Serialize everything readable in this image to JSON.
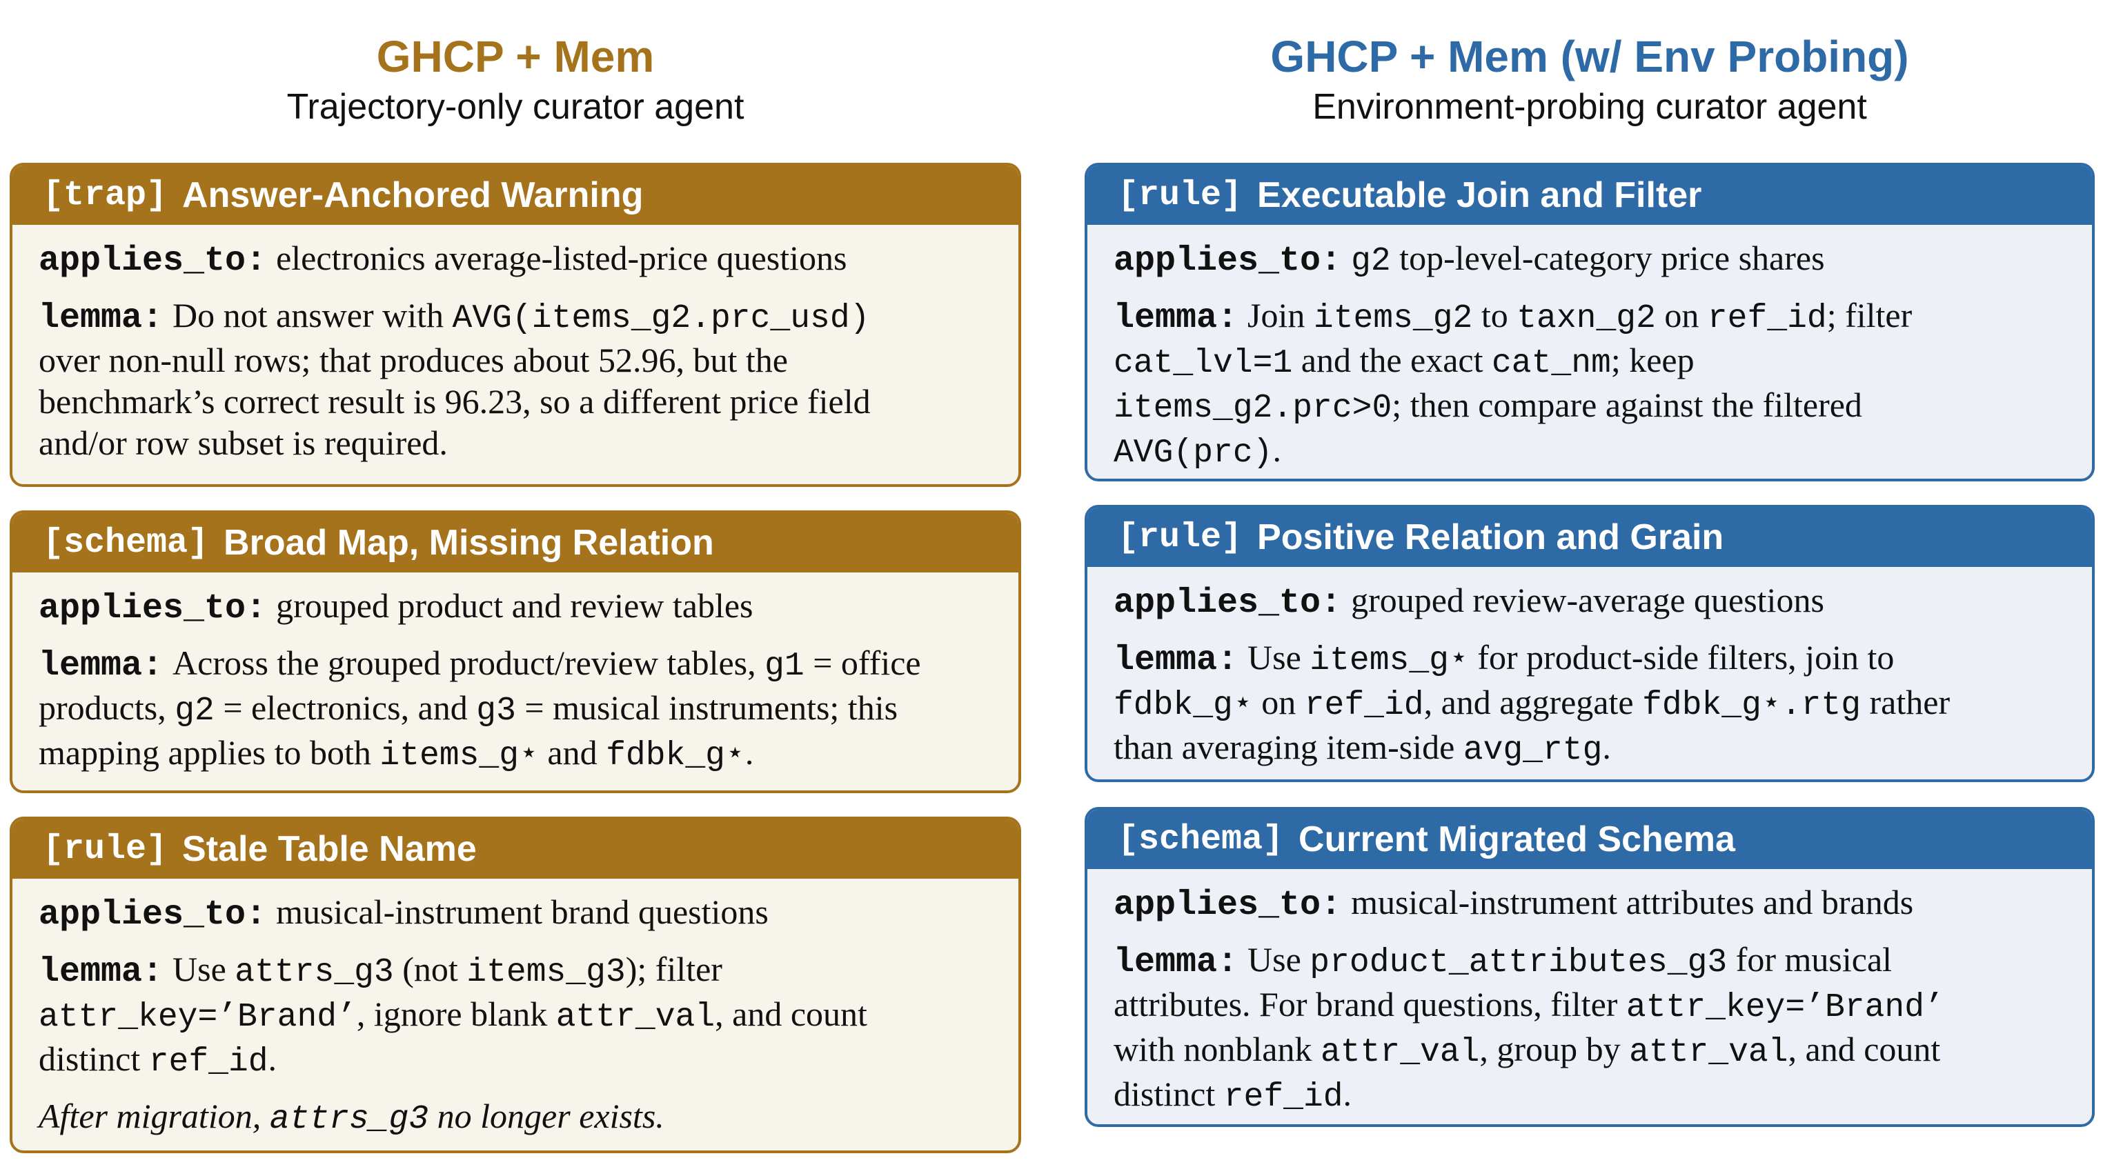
{
  "left": {
    "title": "GHCP + Mem",
    "subtitle": "Trajectory-only curator agent",
    "cards": [
      {
        "tag": "[trap]",
        "title": "Answer-Anchored Warning",
        "applies_key": "applies_to:",
        "applies_text": "electronics average-listed-price questions",
        "lemma_key": "lemma:",
        "lemma_lines": [
          [
            "Do not answer with ",
            "AVG(items_g2.prc_usd)"
          ],
          [
            "over non-null rows; that produces about 52.96, but the"
          ],
          [
            "benchmark’s correct result is 96.23, so a different price field"
          ],
          [
            "and/or row subset is required."
          ]
        ]
      },
      {
        "tag": "[schema]",
        "title": "Broad Map, Missing Relation",
        "applies_key": "applies_to:",
        "applies_text": "grouped product and review tables",
        "lemma_key": "lemma:",
        "lemma_lines": [
          [
            "Across the grouped product/review tables, ",
            "g1",
            " = office"
          ],
          [
            "products, ",
            "g2",
            " = electronics, and ",
            "g3",
            " = musical instruments; this"
          ],
          [
            "mapping applies to both ",
            "items_g⋆",
            " and ",
            "fdbk_g⋆",
            "."
          ]
        ]
      },
      {
        "tag": "[rule]",
        "title": "Stale Table Name",
        "applies_key": "applies_to:",
        "applies_text": "musical-instrument brand questions",
        "lemma_key": "lemma:",
        "lemma_lines": [
          [
            "Use ",
            "attrs_g3",
            " (not ",
            "items_g3",
            "); filter"
          ],
          [
            "",
            "attr_key=’Brand’",
            ", ignore blank ",
            "attr_val",
            ", and count"
          ],
          [
            "distinct ",
            "ref_id",
            "."
          ]
        ],
        "note": [
          "After migration, ",
          "attrs_g3",
          " no longer exists."
        ]
      }
    ]
  },
  "right": {
    "title": "GHCP + Mem (w/ Env Probing)",
    "subtitle": "Environment-probing curator agent",
    "cards": [
      {
        "tag": "[rule]",
        "title": "Executable Join and Filter",
        "applies_key": "applies_to:",
        "applies_parts": [
          "",
          "g2",
          " top-level-category price shares"
        ],
        "lemma_key": "lemma:",
        "lemma_lines": [
          [
            "Join ",
            "items_g2",
            " to ",
            "taxn_g2",
            " on ",
            "ref_id",
            "; filter"
          ],
          [
            "",
            "cat_lvl=1",
            " and the exact ",
            "cat_nm",
            "; keep"
          ],
          [
            "",
            "items_g2.prc>0",
            "; then compare against the filtered"
          ],
          [
            "",
            "AVG(prc)",
            "."
          ]
        ]
      },
      {
        "tag": "[rule]",
        "title": "Positive Relation and Grain",
        "applies_key": "applies_to:",
        "applies_text": "grouped review-average questions",
        "lemma_key": "lemma:",
        "lemma_lines": [
          [
            "Use ",
            "items_g⋆",
            " for product-side filters, join to"
          ],
          [
            "",
            "fdbk_g⋆",
            " on ",
            "ref_id",
            ", and aggregate ",
            "fdbk_g⋆.rtg",
            " rather"
          ],
          [
            "than averaging item-side ",
            "avg_rtg",
            "."
          ]
        ]
      },
      {
        "tag": "[schema]",
        "title": "Current Migrated Schema",
        "applies_key": "applies_to:",
        "applies_text": "musical-instrument attributes and brands",
        "lemma_key": "lemma:",
        "lemma_lines": [
          [
            "Use ",
            "product_attributes_g3",
            " for musical"
          ],
          [
            "attributes. For brand questions, filter ",
            "attr_key=’Brand’"
          ],
          [
            "with nonblank ",
            "attr_val",
            ", group by ",
            "attr_val",
            ", and count"
          ],
          [
            "distinct ",
            "ref_id",
            "."
          ]
        ]
      }
    ]
  },
  "colors": {
    "left_accent": "#a5731b",
    "right_accent": "#2e6aa6",
    "left_bg": "#f7f4ec",
    "right_bg": "#edf1f7"
  }
}
